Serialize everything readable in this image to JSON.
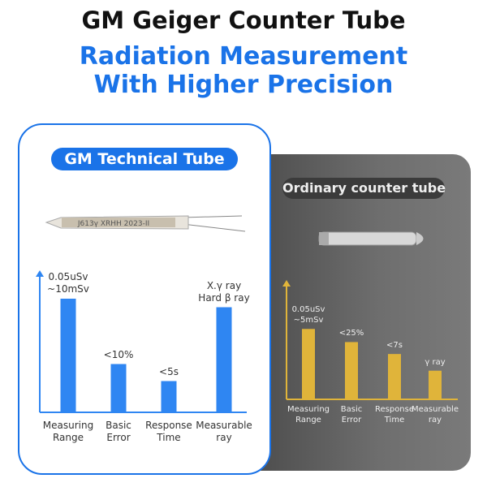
{
  "title": "GM Geiger Counter Tube",
  "subtitle_line1": "Radiation Measurement",
  "subtitle_line2": "With Higher Precision",
  "tech_card": {
    "badge": "GM Technical Tube",
    "tube_marking": "J613γ XRHH 2023-II",
    "accent_color": "#1a73e8"
  },
  "ordinary_card": {
    "badge": "Ordinary counter tube",
    "accent_color": "#e0b43a"
  },
  "chart_data": [
    {
      "type": "bar",
      "name": "GM Technical Tube",
      "categories": [
        "Measuring\nRange",
        "Basic\nError",
        "Response\nTime",
        "Measurable\nray"
      ],
      "data_labels": [
        "0.05uSv\n~10mSv",
        "<10%",
        "<5s",
        "X.γ ray\nHard β ray"
      ],
      "relative_values": [
        80,
        34,
        22,
        74
      ],
      "color": "#2f86f2"
    },
    {
      "type": "bar",
      "name": "Ordinary counter tube",
      "categories": [
        "Measuring\nRange",
        "Basic\nError",
        "Response\nTime",
        "Measurable\nray"
      ],
      "data_labels": [
        "0.05uSv\n~5mSv",
        "<25%",
        "<7s",
        "γ ray"
      ],
      "relative_values": [
        59,
        48,
        38,
        24
      ],
      "color": "#e0b43a"
    }
  ]
}
